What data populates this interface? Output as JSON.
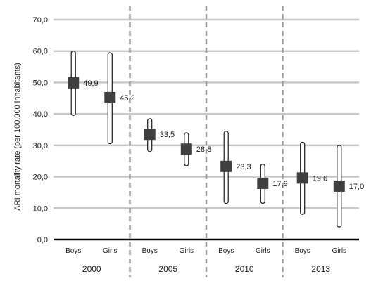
{
  "chart_data": {
    "type": "error-bar",
    "ylabel": "ARI mortality rate (per 100.000 inhabitants)",
    "ylim": [
      0,
      70
    ],
    "yticks": [
      "0,0",
      "10,0",
      "20,0",
      "30,0",
      "40,0",
      "50,0",
      "60,0",
      "70,0"
    ],
    "grid": true,
    "groups": [
      {
        "year": "2000",
        "items": [
          {
            "label": "Boys",
            "value": 49.9,
            "value_label": "49,9",
            "low": 39.5,
            "high": 60.0
          },
          {
            "label": "Girls",
            "value": 45.2,
            "value_label": "45,2",
            "low": 30.5,
            "high": 59.5
          }
        ]
      },
      {
        "year": "2005",
        "items": [
          {
            "label": "Boys",
            "value": 33.5,
            "value_label": "33,5",
            "low": 28.0,
            "high": 38.5
          },
          {
            "label": "Girls",
            "value": 28.8,
            "value_label": "28,8",
            "low": 23.5,
            "high": 34.0
          }
        ]
      },
      {
        "year": "2010",
        "items": [
          {
            "label": "Boys",
            "value": 23.3,
            "value_label": "23,3",
            "low": 11.5,
            "high": 34.5
          },
          {
            "label": "Girls",
            "value": 17.9,
            "value_label": "17,9",
            "low": 11.5,
            "high": 24.0
          }
        ]
      },
      {
        "year": "2013",
        "items": [
          {
            "label": "Boys",
            "value": 19.6,
            "value_label": "19,6",
            "low": 8.0,
            "high": 31.0
          },
          {
            "label": "Girls",
            "value": 17.0,
            "value_label": "17,0",
            "low": 4.0,
            "high": 30.0
          }
        ]
      }
    ]
  }
}
